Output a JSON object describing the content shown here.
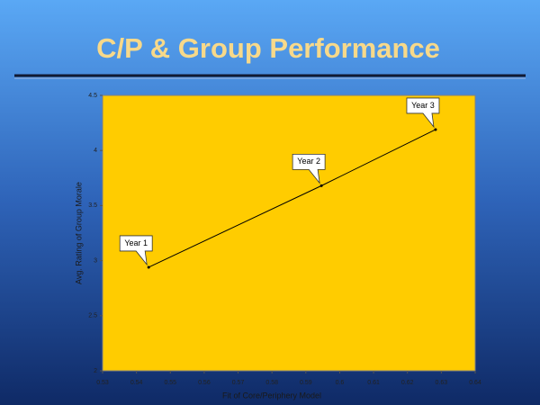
{
  "chart_data": {
    "type": "line",
    "title": "C/P & Group Performance",
    "x_label": "Fit of Core/Periphery Model",
    "y_label": "Avg. Rating of Group Morale",
    "x": [
      0.5436,
      0.5946,
      0.6283
    ],
    "values": [
      2.94,
      3.68,
      4.19
    ],
    "point_labels": [
      "Year 1",
      "Year 2",
      "Year 3"
    ],
    "color": "#000000",
    "plot_background": "#ffcc00",
    "xlim": [
      0.53,
      0.64
    ],
    "xticks": [
      0.53,
      0.54,
      0.55,
      0.56,
      0.57,
      0.58,
      0.59,
      0.6,
      0.61,
      0.62,
      0.63,
      0.64
    ],
    "ylim": [
      2,
      4.5
    ],
    "yticks": [
      2,
      2.5,
      3,
      3.5,
      4,
      4.5
    ],
    "grid": false
  }
}
